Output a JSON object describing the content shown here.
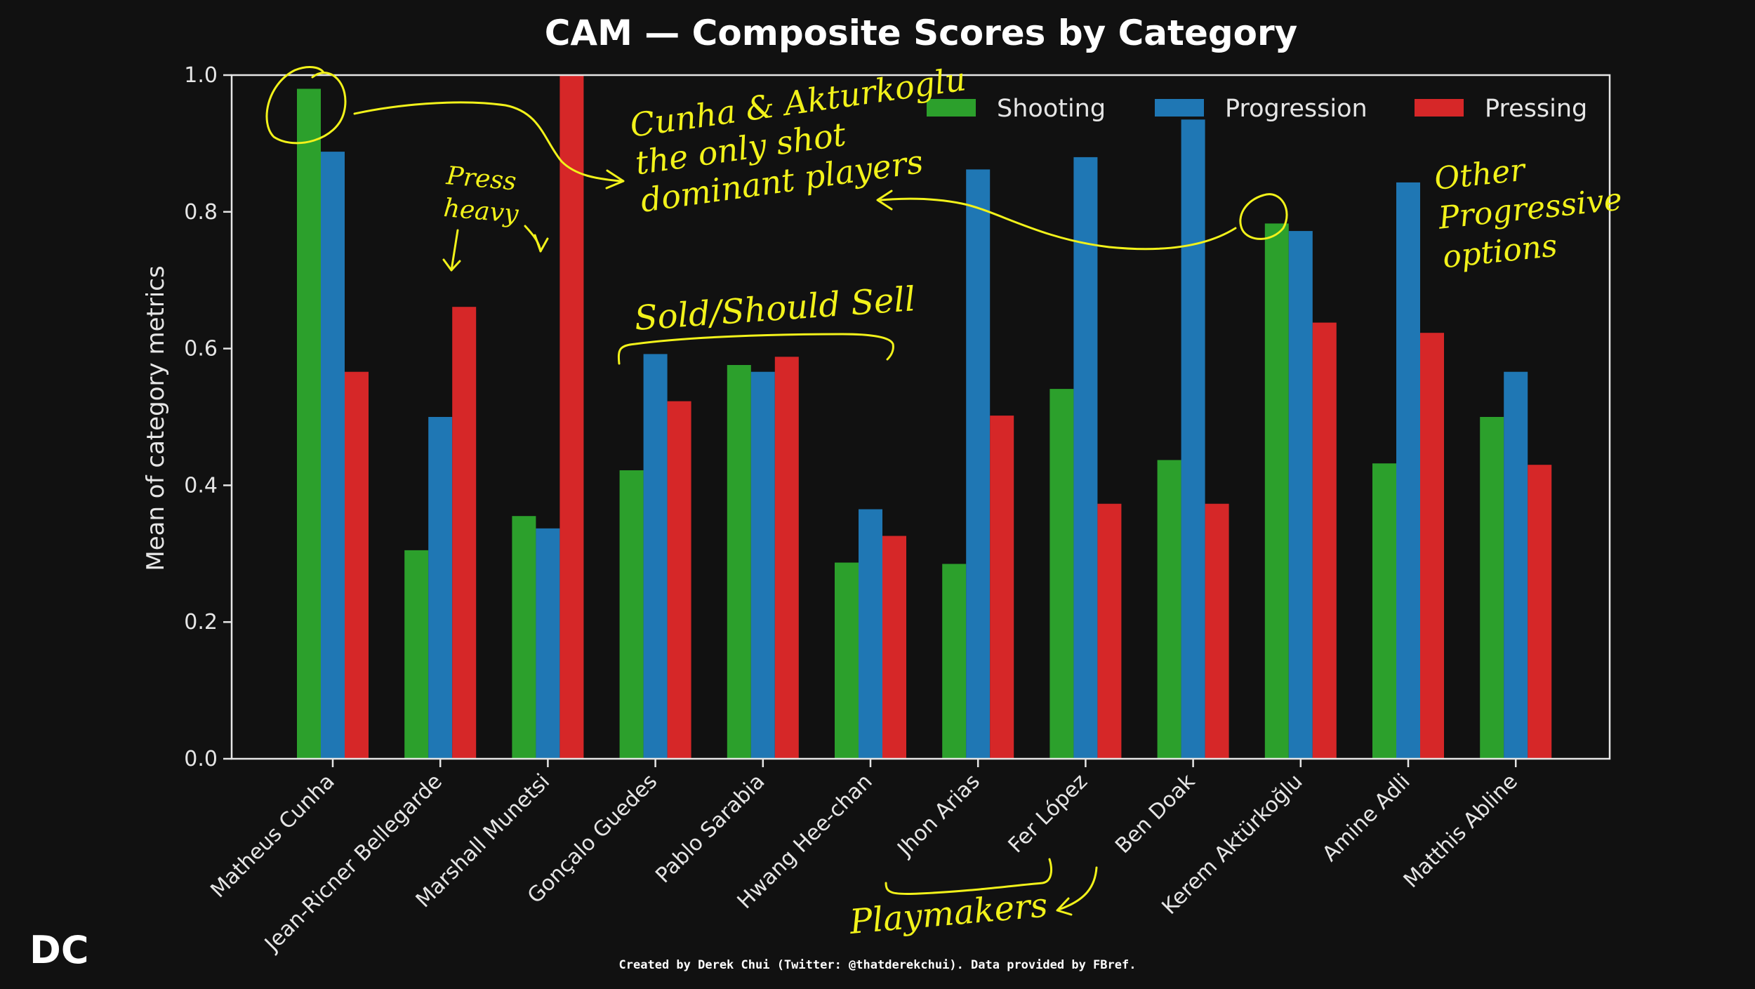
{
  "chart_data": {
    "type": "bar",
    "title": "CAM — Composite Scores by Category",
    "ylabel": "Mean of category metrics",
    "xlabel": "",
    "ylim": [
      0,
      1.0
    ],
    "yticks": [
      "0.0",
      "0.2",
      "0.4",
      "0.6",
      "0.8",
      "1.0"
    ],
    "grid": false,
    "legend_position": "top-right",
    "categories": [
      "Matheus Cunha",
      "Jean-Ricner Bellegarde",
      "Marshall Munetsi",
      "Gonçalo Guedes",
      "Pablo Sarabia",
      "Hwang Hee-chan",
      "Jhon Arias",
      "Fer López",
      "Ben Doak",
      "Kerem Aktürkoğlu",
      "Amine Adli",
      "Matthis Abline"
    ],
    "series": [
      {
        "name": "Shooting",
        "color": "#2ca02c",
        "values": [
          0.98,
          0.305,
          0.355,
          0.422,
          0.576,
          0.287,
          0.285,
          0.541,
          0.437,
          0.783,
          0.432,
          0.5
        ]
      },
      {
        "name": "Progression",
        "color": "#1f77b4",
        "values": [
          0.888,
          0.5,
          0.337,
          0.592,
          0.566,
          0.365,
          0.862,
          0.88,
          0.935,
          0.772,
          0.843,
          0.566
        ]
      },
      {
        "name": "Pressing",
        "color": "#d62728",
        "values": [
          0.566,
          0.661,
          1.0,
          0.523,
          0.588,
          0.326,
          0.502,
          0.373,
          0.373,
          0.638,
          0.623,
          0.43
        ]
      }
    ],
    "annotations": [
      {
        "id": "shot",
        "lines": [
          "Cunha & Akturkoglu",
          "the only shot",
          "dominant players"
        ]
      },
      {
        "id": "press",
        "lines": [
          "Press",
          "heavy"
        ]
      },
      {
        "id": "sold",
        "lines": [
          "Sold/Should Sell"
        ]
      },
      {
        "id": "prog",
        "lines": [
          "Other",
          "Progressive",
          "options"
        ]
      },
      {
        "id": "play",
        "lines": [
          "Playmakers"
        ]
      }
    ]
  },
  "credit": "Created by Derek Chui (Twitter: @thatderekchui). Data provided by FBref.",
  "logo": "DC"
}
